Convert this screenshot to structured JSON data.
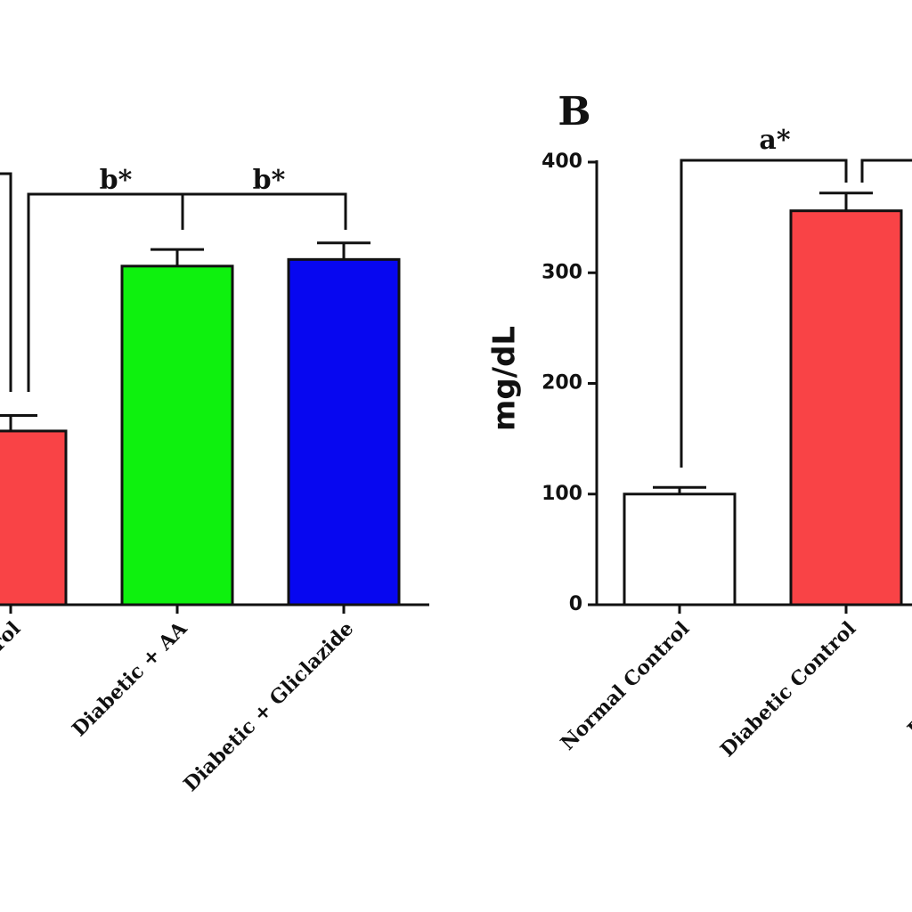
{
  "chart_data": [
    {
      "type": "bar",
      "categories": [
        "Diabetic Control",
        "Diabetic + AA",
        "Diabetic + Gliclazide"
      ],
      "values": [
        157,
        306,
        312
      ],
      "errors": [
        14,
        15,
        15
      ],
      "colors": [
        "#f94346",
        "#0ef10e",
        "#0707f0"
      ],
      "ylim": [
        0,
        400
      ],
      "annotations": [
        "b*",
        "b*"
      ]
    },
    {
      "type": "bar",
      "title": "B",
      "y_label": "mg/dL",
      "categories": [
        "Normal Control",
        "Diabetic Control",
        "Diabetic + AA"
      ],
      "values": [
        100,
        356,
        null
      ],
      "errors": [
        6,
        16,
        null
      ],
      "colors": [
        "#ffffff",
        "#f94346",
        "#0ef10e"
      ],
      "ylim": [
        0,
        400
      ],
      "yticks": [
        0,
        100,
        200,
        300,
        400
      ],
      "annotations": [
        "a*"
      ]
    }
  ]
}
